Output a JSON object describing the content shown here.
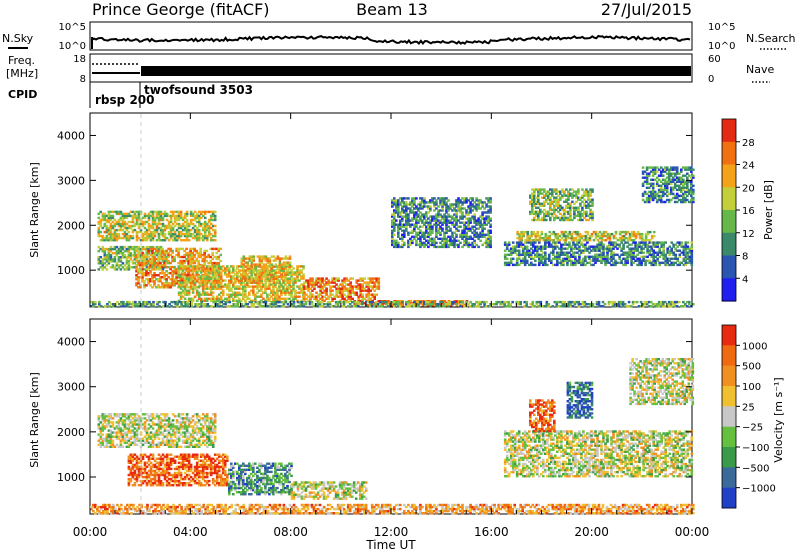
{
  "header": {
    "station": "Prince George (fitACF)",
    "beam": "Beam 13",
    "date": "27/Jul/2015"
  },
  "noise_panel": {
    "left_label": "N.Sky",
    "right_label": "N.Search",
    "left_ticks": [
      "10^5",
      "10^0"
    ],
    "right_ticks": [
      "10^5",
      "10^0"
    ]
  },
  "freq_panel": {
    "left_label_1": "Freq.",
    "left_label_2": "[MHz]",
    "right_label": "Nave",
    "left_ticks": [
      "18",
      "8"
    ],
    "right_ticks": [
      "60",
      "0"
    ]
  },
  "cpid": {
    "label": "CPID",
    "modes": [
      {
        "name": "rbsp",
        "id": "200",
        "start_hour": 0
      },
      {
        "name": "twofsound",
        "id": "3503",
        "start_hour": 2
      }
    ]
  },
  "x_axis": {
    "label": "Time UT",
    "ticks": [
      "00:00",
      "04:00",
      "08:00",
      "12:00",
      "16:00",
      "20:00",
      "00:00"
    ]
  },
  "chart_data": [
    {
      "type": "heatmap",
      "name": "power",
      "x_unit": "hour UT",
      "x_range": [
        0,
        24
      ],
      "ylabel": "Slant Range [km]",
      "ylim": [
        180,
        4500
      ],
      "y_ticks": [
        1000,
        2000,
        3000,
        4000
      ],
      "colorbar_label": "Power [dB]",
      "colorbar_ticks": [
        "4",
        "8",
        "12",
        "16",
        "20",
        "24",
        "28"
      ],
      "colorbar_colors": [
        "#1f1ff0",
        "#2a55b0",
        "#3a8a6a",
        "#66b84a",
        "#c2cf3a",
        "#f4a21a",
        "#f07012",
        "#e22a14"
      ],
      "regions": [
        {
          "t0": 0.3,
          "t1": 5.0,
          "r0": 1650,
          "r1": 2300,
          "level": 0.55
        },
        {
          "t0": 0.3,
          "t1": 3.0,
          "r0": 1000,
          "r1": 1500,
          "level": 0.45
        },
        {
          "t0": 1.8,
          "t1": 5.2,
          "r0": 600,
          "r1": 1500,
          "level": 0.7
        },
        {
          "t0": 3.5,
          "t1": 8.5,
          "r0": 300,
          "r1": 1100,
          "level": 0.6
        },
        {
          "t0": 6.0,
          "t1": 8.0,
          "r0": 700,
          "r1": 1300,
          "level": 0.65
        },
        {
          "t0": 8.5,
          "t1": 11.5,
          "r0": 300,
          "r1": 800,
          "level": 0.75
        },
        {
          "t0": 10.5,
          "t1": 15.0,
          "r0": 200,
          "r1": 330,
          "level": 0.85
        },
        {
          "t0": 0.0,
          "t1": 24.0,
          "r0": 180,
          "r1": 300,
          "level": 0.4
        },
        {
          "t0": 16.5,
          "t1": 24.0,
          "r0": 1100,
          "r1": 1600,
          "level": 0.3
        },
        {
          "t0": 17.0,
          "t1": 22.5,
          "r0": 1650,
          "r1": 1850,
          "level": 0.55
        },
        {
          "t0": 17.5,
          "t1": 20.0,
          "r0": 2100,
          "r1": 2800,
          "level": 0.45
        },
        {
          "t0": 22.0,
          "t1": 24.0,
          "r0": 2500,
          "r1": 3300,
          "level": 0.3
        },
        {
          "t0": 12.0,
          "t1": 16.0,
          "r0": 1500,
          "r1": 2600,
          "level": 0.3
        }
      ]
    },
    {
      "type": "heatmap",
      "name": "velocity",
      "x_unit": "hour UT",
      "x_range": [
        0,
        24
      ],
      "ylabel": "Slant Range [km]",
      "ylim": [
        180,
        4500
      ],
      "y_ticks": [
        1000,
        2000,
        3000,
        4000
      ],
      "colorbar_label": "Velocity [m s⁻¹]",
      "colorbar_ticks": [
        "1000",
        "500",
        "100",
        "25",
        "−25",
        "−100",
        "−500",
        "−1000"
      ],
      "colorbar_colors": [
        "#2040c8",
        "#3a6a9a",
        "#3a9a4a",
        "#66c040",
        "#c8c8c8",
        "#f0c030",
        "#f09020",
        "#f06a12",
        "#e82a10"
      ],
      "regions": [
        {
          "t0": 0.3,
          "t1": 5.0,
          "r0": 1650,
          "r1": 2400,
          "level": 0.5
        },
        {
          "t0": 1.5,
          "t1": 5.5,
          "r0": 800,
          "r1": 1500,
          "level": 0.85
        },
        {
          "t0": 5.5,
          "t1": 8.0,
          "r0": 600,
          "r1": 1300,
          "level": 0.3
        },
        {
          "t0": 8.0,
          "t1": 11.0,
          "r0": 500,
          "r1": 900,
          "level": 0.5
        },
        {
          "t0": 0.0,
          "t1": 24.0,
          "r0": 180,
          "r1": 400,
          "level": 0.7
        },
        {
          "t0": 16.5,
          "t1": 24.0,
          "r0": 1000,
          "r1": 2000,
          "level": 0.5
        },
        {
          "t0": 17.5,
          "t1": 18.5,
          "r0": 2000,
          "r1": 2700,
          "level": 0.85
        },
        {
          "t0": 19.0,
          "t1": 20.0,
          "r0": 2300,
          "r1": 3100,
          "level": 0.15
        },
        {
          "t0": 21.5,
          "t1": 24.0,
          "r0": 2600,
          "r1": 3600,
          "level": 0.5
        }
      ]
    }
  ]
}
